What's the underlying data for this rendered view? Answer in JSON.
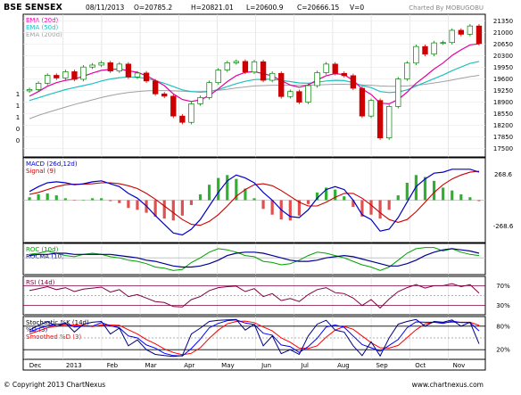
{
  "header": {
    "symbol": "BSE SENSEX",
    "date": "08/11/2013",
    "open": "O=20785.2",
    "high": "H=20821.01",
    "low": "L=20600.9",
    "close": "C=20666.15",
    "volume": "V=0",
    "credit": "Charted By MOBUGOBU"
  },
  "footer": {
    "copyright": "© Copyright 2013 ChartNexus",
    "website": "www.chartnexus.com"
  },
  "colors": {
    "price_up": "#008000",
    "price_down": "#cc0000",
    "ema20": "#e000a0",
    "ema50": "#20c0c0",
    "ema200": "#a0a0a0",
    "macd": "#0000cc",
    "signal": "#cc0000",
    "roc": "#00a000",
    "rocma": "#000090",
    "rsi": "#800040",
    "stoch_k": "#000080",
    "stoch_d": "#0000ff",
    "stoch_sd": "#ff0000"
  },
  "chart_data": [
    {
      "type": "candlestick",
      "panel": "price",
      "legend": [
        "EMA (20d)",
        "EMA (50d)",
        "EMA (200d)"
      ],
      "y_ticks": [
        "21350",
        "21000",
        "20650",
        "20300",
        "19950",
        "19600",
        "19250",
        "18900",
        "18550",
        "18200",
        "17850",
        "17500"
      ],
      "ylim": [
        17300,
        21500
      ],
      "left_axis_labels": [
        "1",
        "1",
        "1",
        "0",
        "0"
      ],
      "x_ticks": [
        "Dec",
        "2013",
        "Feb",
        "Mar",
        "Apr",
        "May",
        "Jun",
        "Jul",
        "Aug",
        "Sep",
        "Oct",
        "Nov"
      ],
      "close": [
        19280,
        19470,
        19710,
        19630,
        19820,
        19590,
        19960,
        20020,
        20090,
        19840,
        20050,
        19660,
        19780,
        19540,
        19150,
        19080,
        18480,
        18290,
        18850,
        19040,
        19490,
        19870,
        20090,
        20130,
        19810,
        20120,
        19560,
        19770,
        19070,
        19220,
        18900,
        19400,
        19790,
        20050,
        19770,
        19700,
        19320,
        18480,
        18950,
        17820,
        18770,
        19600,
        20080,
        20580,
        20350,
        20690,
        20700,
        21070,
        20950,
        21200,
        20670
      ],
      "ema20": [
        19080,
        19220,
        19380,
        19490,
        19560,
        19600,
        19680,
        19780,
        19860,
        19890,
        19900,
        19850,
        19800,
        19700,
        19560,
        19400,
        19150,
        18980,
        18920,
        18970,
        19100,
        19300,
        19520,
        19700,
        19800,
        19820,
        19760,
        19690,
        19550,
        19420,
        19350,
        19420,
        19570,
        19700,
        19760,
        19730,
        19560,
        19300,
        19130,
        18870,
        18850,
        18980,
        19200,
        19470,
        19680,
        19900,
        20080,
        20310,
        20480,
        20630,
        20660
      ],
      "ema50": [
        18950,
        19030,
        19120,
        19200,
        19280,
        19340,
        19400,
        19460,
        19540,
        19600,
        19640,
        19660,
        19650,
        19620,
        19550,
        19470,
        19370,
        19270,
        19220,
        19200,
        19220,
        19280,
        19370,
        19460,
        19530,
        19580,
        19590,
        19590,
        19560,
        19520,
        19480,
        19470,
        19500,
        19540,
        19560,
        19550,
        19490,
        19400,
        19340,
        19220,
        19190,
        19210,
        19270,
        19390,
        19500,
        19610,
        19720,
        19850,
        19960,
        20070,
        20130
      ],
      "ema200": [
        18400,
        18500,
        18590,
        18670,
        18750,
        18830,
        18900,
        18970,
        19040,
        19100,
        19150,
        19190,
        19220,
        19240,
        19250,
        19250,
        19240,
        19230,
        19220,
        19220,
        19230,
        19260,
        19290,
        19330,
        19360,
        19390,
        19400,
        19410,
        19410,
        19410,
        19410,
        19410,
        19420,
        19430,
        19440,
        19440,
        19430,
        19420,
        19410,
        19390,
        19380,
        19380,
        19390,
        19410,
        19440,
        19480,
        19520,
        19570,
        19620,
        19670,
        19710
      ]
    },
    {
      "type": "line",
      "panel": "macd",
      "legend": [
        "MACD (26d,12d)",
        "Signal (9)"
      ],
      "y_ticks": [
        "268.6",
        "-268.6"
      ],
      "ylim": [
        -420,
        420
      ],
      "macd": [
        90,
        140,
        180,
        190,
        180,
        160,
        170,
        190,
        200,
        170,
        140,
        70,
        20,
        -60,
        -160,
        -250,
        -340,
        -360,
        -300,
        -200,
        -60,
        80,
        200,
        260,
        230,
        180,
        80,
        0,
        -100,
        -170,
        -180,
        -100,
        20,
        110,
        140,
        110,
        0,
        -150,
        -200,
        -320,
        -300,
        -180,
        -20,
        140,
        220,
        280,
        290,
        320,
        320,
        320,
        290
      ],
      "signal": [
        60,
        80,
        110,
        140,
        160,
        165,
        165,
        170,
        180,
        180,
        170,
        150,
        120,
        70,
        10,
        -60,
        -130,
        -200,
        -250,
        -260,
        -220,
        -150,
        -60,
        40,
        110,
        160,
        170,
        150,
        100,
        40,
        -20,
        -60,
        -60,
        -20,
        30,
        70,
        70,
        20,
        -50,
        -130,
        -200,
        -230,
        -200,
        -120,
        -20,
        80,
        160,
        220,
        260,
        290,
        300
      ]
    },
    {
      "type": "line",
      "panel": "roc",
      "legend": [
        "ROC (10d)",
        "ROCMA (10)"
      ],
      "roc": [
        3,
        4,
        6,
        4,
        2,
        1,
        3,
        4,
        3,
        1,
        0,
        -2,
        -3,
        -5,
        -8,
        -9,
        -11,
        -10,
        -4,
        0,
        5,
        8,
        7,
        5,
        2,
        1,
        -3,
        -4,
        -6,
        -5,
        -2,
        2,
        5,
        4,
        2,
        0,
        -3,
        -6,
        -8,
        -11,
        -8,
        -2,
        4,
        8,
        9,
        9,
        6,
        8,
        5,
        3,
        2
      ],
      "rocma": [
        2,
        3,
        3,
        4,
        4,
        3,
        3,
        3,
        3,
        3,
        2,
        1,
        0,
        -2,
        -3,
        -5,
        -7,
        -8,
        -8,
        -7,
        -5,
        -2,
        2,
        4,
        5,
        5,
        4,
        2,
        0,
        -2,
        -3,
        -3,
        -2,
        0,
        1,
        2,
        1,
        -1,
        -3,
        -5,
        -7,
        -7,
        -5,
        -2,
        2,
        5,
        7,
        8,
        7,
        6,
        4
      ]
    },
    {
      "type": "line",
      "panel": "rsi",
      "legend": [
        "RSI (14d)"
      ],
      "y_ticks": [
        "70%",
        "30%"
      ],
      "ylim": [
        15,
        85
      ],
      "rsi": [
        60,
        64,
        68,
        62,
        66,
        58,
        63,
        65,
        67,
        57,
        62,
        48,
        52,
        45,
        38,
        36,
        28,
        27,
        42,
        48,
        60,
        66,
        68,
        69,
        58,
        64,
        48,
        54,
        40,
        44,
        38,
        52,
        62,
        66,
        56,
        54,
        45,
        30,
        42,
        25,
        43,
        58,
        66,
        72,
        65,
        70,
        70,
        74,
        68,
        72,
        55
      ]
    },
    {
      "type": "line",
      "panel": "stochastic",
      "legend": [
        "Stochastic %K (14d)",
        "%D (3)",
        "Smoothed %D (3)"
      ],
      "y_ticks": [
        "80%",
        "20%"
      ],
      "ylim": [
        0,
        100
      ],
      "k": [
        70,
        82,
        92,
        80,
        88,
        65,
        85,
        90,
        92,
        60,
        75,
        30,
        45,
        20,
        8,
        5,
        3,
        5,
        60,
        75,
        92,
        95,
        96,
        97,
        70,
        85,
        30,
        55,
        10,
        20,
        8,
        55,
        85,
        95,
        70,
        65,
        30,
        5,
        40,
        4,
        50,
        85,
        92,
        97,
        80,
        92,
        90,
        96,
        80,
        90,
        35
      ],
      "d": [
        65,
        74,
        81,
        85,
        87,
        78,
        80,
        80,
        89,
        81,
        76,
        55,
        50,
        32,
        24,
        11,
        5,
        4,
        23,
        47,
        76,
        87,
        94,
        96,
        88,
        84,
        62,
        57,
        32,
        28,
        13,
        28,
        49,
        78,
        83,
        77,
        55,
        33,
        25,
        16,
        31,
        46,
        76,
        91,
        90,
        90,
        87,
        93,
        89,
        89,
        68
      ],
      "smoothed_d": [
        60,
        68,
        76,
        80,
        84,
        83,
        82,
        79,
        83,
        83,
        82,
        71,
        60,
        46,
        35,
        22,
        13,
        7,
        11,
        25,
        49,
        70,
        86,
        92,
        93,
        89,
        78,
        68,
        50,
        39,
        24,
        23,
        30,
        52,
        70,
        79,
        72,
        55,
        38,
        25,
        24,
        31,
        51,
        71,
        86,
        90,
        89,
        90,
        90,
        90,
        82
      ]
    }
  ]
}
